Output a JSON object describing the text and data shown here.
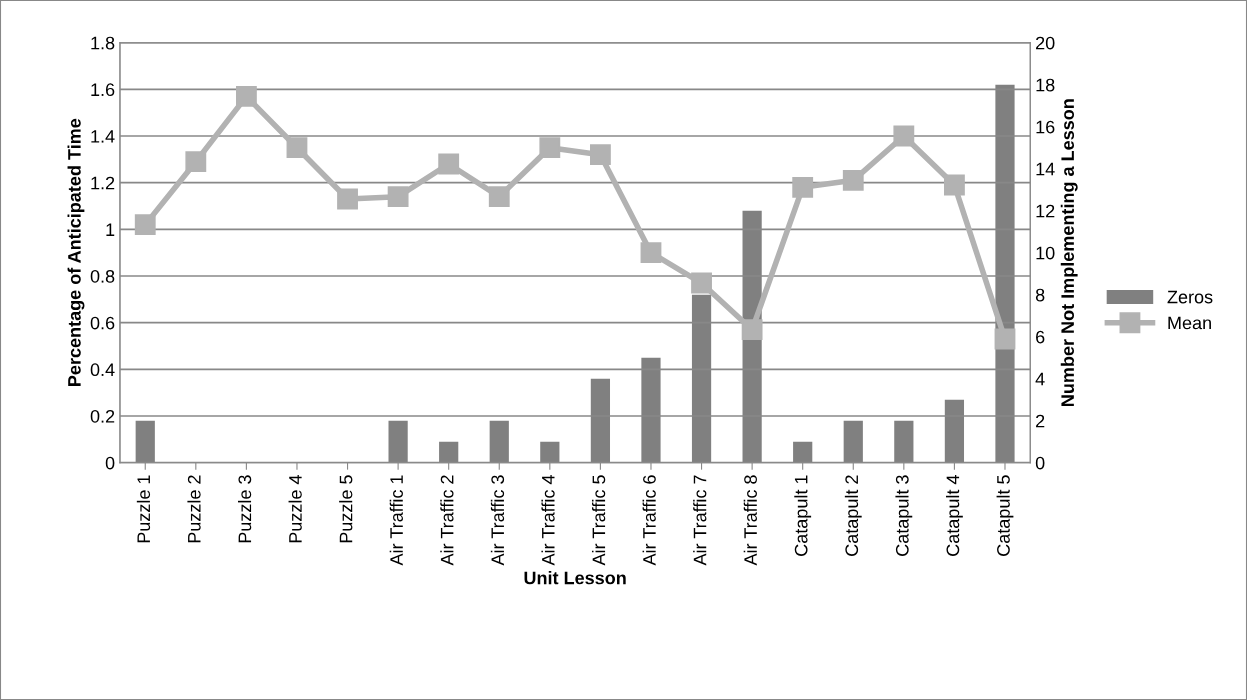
{
  "chart_data": {
    "type": "bar",
    "xlabel": "Unit Lesson",
    "ylabel": "Percentage of Anticipated Time",
    "y2label": "Number Not Implementing a Lesson",
    "categories": [
      "Puzzle 1",
      "Puzzle 2",
      "Puzzle 3",
      "Puzzle 4",
      "Puzzle 5",
      "Air Traffic 1",
      "Air Traffic 2",
      "Air Traffic 3",
      "Air Traffic 4",
      "Air Traffic 5",
      "Air Traffic 6",
      "Air Traffic 7",
      "Air Traffic 8",
      "Catapult 1",
      "Catapult 2",
      "Catapult 3",
      "Catapult 4",
      "Catapult 5"
    ],
    "series": [
      {
        "name": "Zeros",
        "axis": "y2",
        "color": "#808080",
        "values": [
          2,
          0,
          0,
          0,
          0,
          2,
          1,
          2,
          1,
          4,
          5,
          8,
          12,
          1,
          2,
          2,
          3,
          18
        ]
      },
      {
        "name": "Mean",
        "type": "line",
        "color": "#b2b2b2",
        "marker": "square",
        "values": [
          1.02,
          1.29,
          1.57,
          1.35,
          1.13,
          1.14,
          1.28,
          1.14,
          1.35,
          1.32,
          0.9,
          0.77,
          0.57,
          1.18,
          1.21,
          1.4,
          1.19,
          0.53
        ]
      }
    ],
    "ylim": [
      0,
      1.8
    ],
    "yticks": [
      0,
      {
        "value": 0.2,
        "label": "0.2"
      },
      {
        "value": 0.4,
        "label": "0.4"
      },
      {
        "value": 0.6,
        "label": "0.6"
      },
      {
        "value": 0.8,
        "label": "0.8"
      },
      1,
      {
        "value": 1.2,
        "label": "1.2"
      },
      {
        "value": 1.4,
        "label": "1.4"
      },
      {
        "value": 1.6,
        "label": "1.6"
      },
      {
        "value": 1.8,
        "label": "1.8"
      }
    ],
    "y2lim": [
      0,
      20
    ],
    "y2ticks": [
      0,
      2,
      4,
      6,
      8,
      10,
      12,
      14,
      16,
      18,
      20
    ],
    "grid": "y",
    "legend": "right"
  }
}
